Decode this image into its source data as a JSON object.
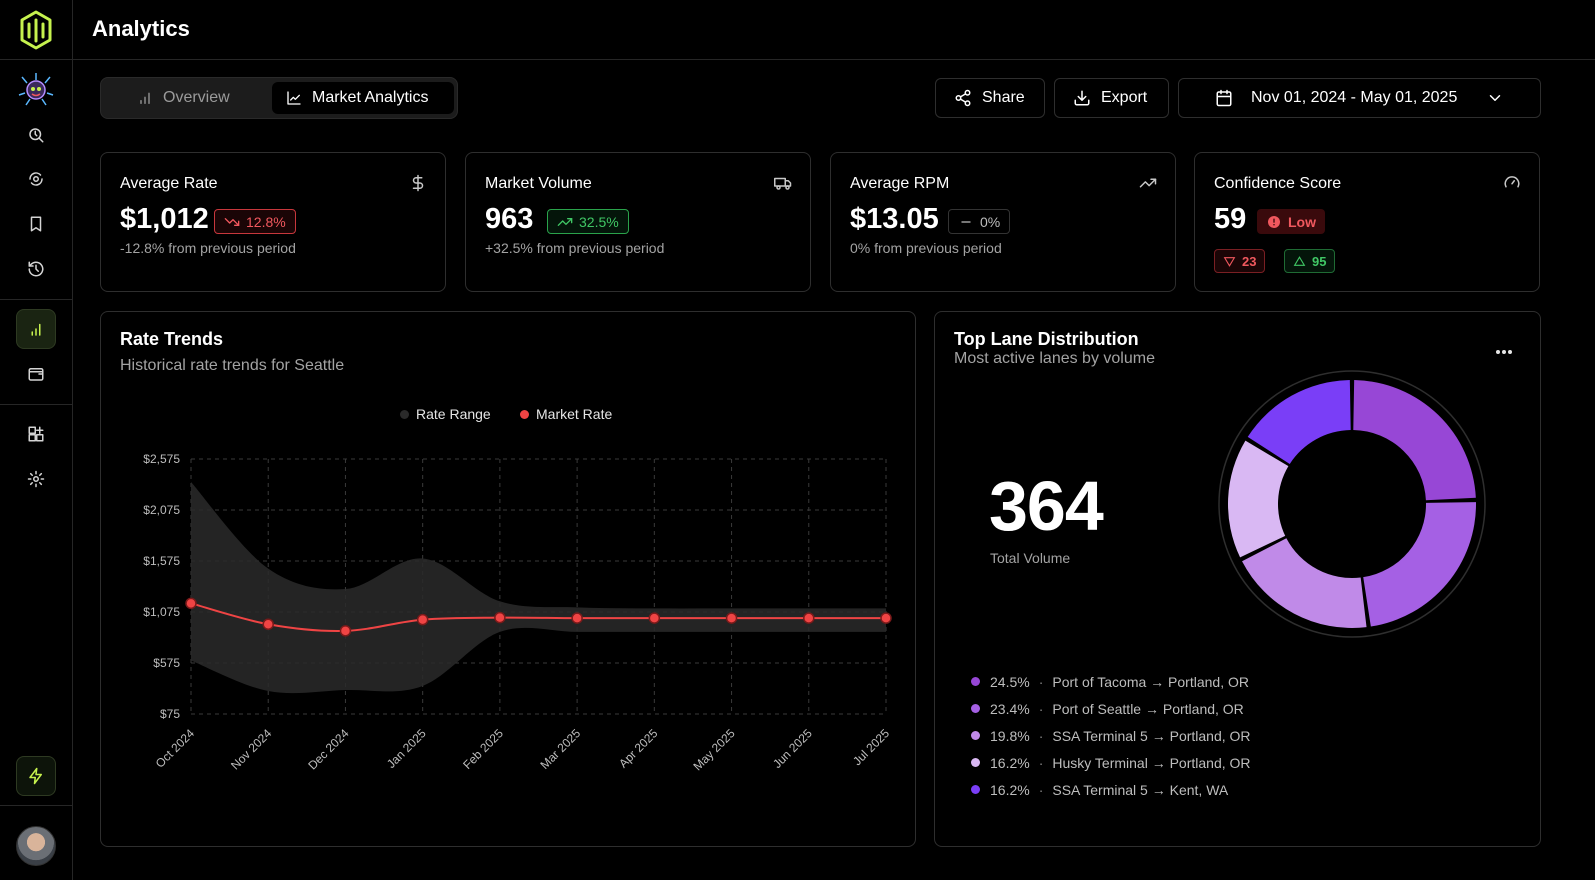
{
  "app": {
    "title": "Analytics"
  },
  "sidebar": {
    "items": [
      {
        "name": "search",
        "icon": "search-refresh-icon"
      },
      {
        "name": "shipments",
        "icon": "dollar-refresh-icon"
      },
      {
        "name": "saved",
        "icon": "bookmark-icon"
      },
      {
        "name": "history",
        "icon": "history-icon"
      },
      {
        "name": "analytics",
        "icon": "bar-chart-icon",
        "active": true
      },
      {
        "name": "wallet",
        "icon": "wallet-icon"
      },
      {
        "name": "integrations",
        "icon": "add-grid-icon"
      },
      {
        "name": "settings",
        "icon": "gear-icon"
      }
    ],
    "bottom_icon": "bolt-icon"
  },
  "tabs": [
    {
      "label": "Overview",
      "icon": "bar-chart-icon",
      "active": false
    },
    {
      "label": "Market Analytics",
      "icon": "line-chart-icon",
      "active": true
    }
  ],
  "toolbar": {
    "share_label": "Share",
    "export_label": "Export",
    "date_range": "Nov 01, 2024 - May 01, 2025"
  },
  "cards": {
    "avg_rate": {
      "title": "Average Rate",
      "value": "$1,012",
      "change": "12.8%",
      "sub": "-12.8% from previous period",
      "icon": "dollar-icon"
    },
    "volume": {
      "title": "Market Volume",
      "value": "963",
      "change": "32.5%",
      "sub": "+32.5% from previous period",
      "icon": "truck-icon"
    },
    "rpm": {
      "title": "Average RPM",
      "value": "$13.05",
      "change": "0%",
      "sub": "0% from previous period",
      "icon": "trending-up-icon"
    },
    "confidence": {
      "title": "Confidence Score",
      "value": "59",
      "level": "Low",
      "low": "23",
      "high": "95",
      "icon": "gauge-icon"
    }
  },
  "rate_trends": {
    "title": "Rate Trends",
    "subtitle": "Historical rate trends for Seattle",
    "legend": [
      "Rate Range",
      "Market Rate"
    ]
  },
  "chart_data": {
    "type": "line",
    "x": [
      "Oct 2024",
      "Nov 2024",
      "Dec 2024",
      "Jan 2025",
      "Feb 2025",
      "Mar 2025",
      "Apr 2025",
      "May 2025",
      "Jun 2025",
      "Jul 2025"
    ],
    "y_ticks": [
      "$2,575",
      "$2,075",
      "$1,575",
      "$1,075",
      "$575",
      "$75"
    ],
    "ylim": [
      75,
      2575
    ],
    "series": [
      {
        "name": "Market Rate",
        "color": "#ef4444",
        "values": [
          1160,
          955,
          890,
          1000,
          1020,
          1015,
          1015,
          1015,
          1015,
          1015
        ]
      },
      {
        "name": "Rate Range",
        "color": "#2a2a2a",
        "upper": [
          2350,
          1500,
          1300,
          1600,
          1180,
          1120,
          1110,
          1110,
          1110,
          1110
        ],
        "lower": [
          600,
          300,
          310,
          350,
          880,
          880,
          880,
          880,
          880,
          880
        ]
      }
    ],
    "grid": true
  },
  "lanes": {
    "title": "Top Lane Distribution",
    "subtitle": "Most active lanes by volume",
    "total": "364",
    "total_label": "Total Volume",
    "items": [
      {
        "pct": "24.5%",
        "label": "Port of Tacoma → Portland, OR",
        "color": "#9747d6",
        "value": 24.5
      },
      {
        "pct": "23.4%",
        "label": "Port of Seattle → Portland, OR",
        "color": "#a560e4",
        "value": 23.4
      },
      {
        "pct": "19.8%",
        "label": "SSA Terminal 5 → Portland, OR",
        "color": "#c08ae8",
        "value": 19.8
      },
      {
        "pct": "16.2%",
        "label": "Husky Terminal → Portland, OR",
        "color": "#d9b8f3",
        "value": 16.2
      },
      {
        "pct": "16.2%",
        "label": "SSA Terminal 5 → Kent, WA",
        "color": "#7a3ef7",
        "value": 16.2
      }
    ]
  }
}
